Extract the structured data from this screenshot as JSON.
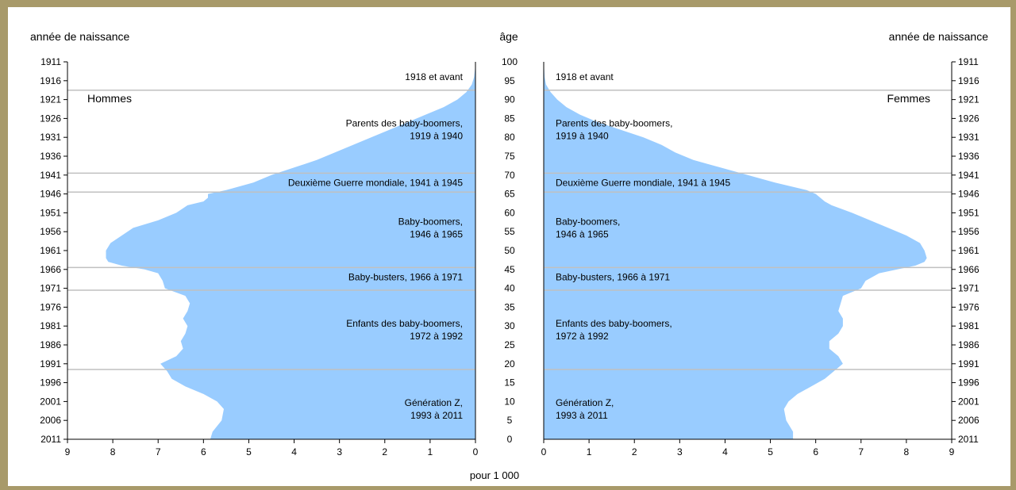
{
  "chart_data": {
    "type": "area",
    "chart_kind": "population pyramid",
    "xlabel": "pour 1 000",
    "x_ticks_left": [
      "9",
      "8",
      "7",
      "6",
      "5",
      "4",
      "3",
      "2",
      "1",
      "0"
    ],
    "x_ticks_right": [
      "0",
      "1",
      "2",
      "3",
      "4",
      "5",
      "6",
      "7",
      "8",
      "9"
    ],
    "xlim": [
      0,
      9
    ],
    "ylim": [
      0,
      100
    ],
    "left_axis_title": "année de naissance",
    "center_axis_title": "âge",
    "right_axis_title": "année de naissance",
    "age_ticks": [
      "100",
      "95",
      "90",
      "85",
      "80",
      "75",
      "70",
      "65",
      "60",
      "55",
      "50",
      "45",
      "40",
      "35",
      "30",
      "25",
      "20",
      "15",
      "10",
      "5",
      "0"
    ],
    "birth_year_ticks": [
      "1911",
      "1916",
      "1921",
      "1926",
      "1931",
      "1936",
      "1941",
      "1946",
      "1951",
      "1956",
      "1961",
      "1966",
      "1971",
      "1976",
      "1981",
      "1986",
      "1991",
      "1996",
      "2001",
      "2006",
      "2011"
    ],
    "color": "#99ccff",
    "series": [
      {
        "name": "Hommes",
        "side": "left",
        "ages": [
          0,
          2,
          5,
          8,
          10,
          12,
          14,
          16,
          18,
          20,
          22,
          24,
          26,
          28,
          30,
          32,
          34,
          36,
          38,
          40,
          42,
          44,
          45,
          46,
          47,
          48,
          50,
          52,
          54,
          56,
          58,
          60,
          62,
          63,
          64,
          65,
          66,
          68,
          70,
          72,
          74,
          76,
          78,
          80,
          82,
          84,
          86,
          88,
          90,
          92,
          94,
          96,
          98,
          100
        ],
        "values": [
          5.85,
          5.8,
          5.6,
          5.55,
          5.7,
          6.0,
          6.4,
          6.7,
          6.8,
          6.95,
          6.6,
          6.45,
          6.5,
          6.4,
          6.35,
          6.45,
          6.35,
          6.3,
          6.4,
          6.85,
          6.9,
          7.0,
          7.3,
          7.8,
          8.1,
          8.15,
          8.15,
          8.05,
          7.8,
          7.55,
          7.0,
          6.6,
          6.35,
          6.0,
          5.9,
          5.9,
          5.5,
          4.9,
          4.5,
          4.0,
          3.5,
          3.1,
          2.7,
          2.3,
          1.9,
          1.5,
          1.1,
          0.7,
          0.4,
          0.2,
          0.08,
          0.03,
          0.01,
          0.0
        ]
      },
      {
        "name": "Femmes",
        "side": "right",
        "ages": [
          0,
          2,
          5,
          8,
          10,
          12,
          14,
          16,
          18,
          20,
          22,
          24,
          26,
          28,
          30,
          32,
          34,
          36,
          38,
          40,
          42,
          44,
          45,
          46,
          47,
          48,
          50,
          52,
          54,
          56,
          58,
          60,
          62,
          63,
          64,
          65,
          66,
          68,
          70,
          72,
          74,
          76,
          78,
          80,
          82,
          84,
          86,
          88,
          90,
          92,
          94,
          96,
          98,
          100
        ],
        "values": [
          5.5,
          5.5,
          5.35,
          5.3,
          5.4,
          5.6,
          5.9,
          6.2,
          6.4,
          6.6,
          6.5,
          6.3,
          6.3,
          6.5,
          6.6,
          6.6,
          6.5,
          6.55,
          6.6,
          7.0,
          7.1,
          7.4,
          7.8,
          8.2,
          8.4,
          8.45,
          8.4,
          8.3,
          8.0,
          7.6,
          7.2,
          6.8,
          6.35,
          6.2,
          6.1,
          6.0,
          5.8,
          5.1,
          4.5,
          3.9,
          3.3,
          2.9,
          2.6,
          2.2,
          1.7,
          1.2,
          0.8,
          0.5,
          0.3,
          0.15,
          0.05,
          0.02,
          0.01,
          0.0
        ]
      }
    ],
    "generation_boundaries_birth_year": [
      1918.5,
      1940.5,
      1945.5,
      1965.5,
      1971.5,
      1992.5
    ],
    "generations": [
      {
        "left": [
          "1918 et avant"
        ],
        "right": [
          "1918 et avant"
        ],
        "age_center": 96
      },
      {
        "left": [
          "Parents des baby-boomers,",
          "1919 à 1940"
        ],
        "right": [
          "Parents des baby-boomers,",
          "1919 à 1940"
        ],
        "age_center": 82
      },
      {
        "left": [
          "Deuxième Guerre mondiale, 1941 à 1945"
        ],
        "right": [
          "Deuxième Guerre mondiale, 1941 à 1945"
        ],
        "age_center": 68
      },
      {
        "left": [
          "Baby-boomers,",
          "1946 à 1965"
        ],
        "right": [
          "Baby-boomers,",
          "1946 à 1965"
        ],
        "age_center": 56
      },
      {
        "left": [
          "Baby-busters, 1966 à 1971"
        ],
        "right": [
          "Baby-busters, 1966 à 1971"
        ],
        "age_center": 43
      },
      {
        "left": [
          "Enfants des baby-boomers,",
          "1972 à 1992"
        ],
        "right": [
          "Enfants des baby-boomers,",
          "1972 à 1992"
        ],
        "age_center": 29
      },
      {
        "left": [
          "Génération Z,",
          "1993 à 2011"
        ],
        "right": [
          "Génération Z,",
          "1993 à 2011"
        ],
        "age_center": 8
      }
    ],
    "panel_labels": {
      "left": "Hommes",
      "right": "Femmes"
    }
  }
}
